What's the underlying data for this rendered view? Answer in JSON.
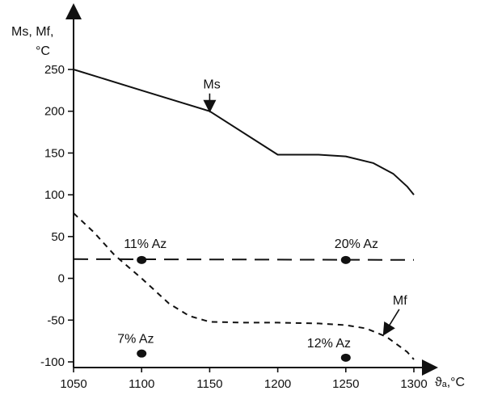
{
  "chart_data": {
    "type": "line",
    "xlabel": "ϑₐ,°C",
    "ylabel_lines": [
      "Ms,  Mf,",
      "°C"
    ],
    "xlim": [
      1050,
      1300
    ],
    "ylim": [
      -100,
      250
    ],
    "x_ticks": [
      1050,
      1100,
      1150,
      1200,
      1250,
      1300
    ],
    "y_ticks": [
      250,
      200,
      150,
      100,
      50,
      0,
      -50,
      -100
    ],
    "grid": false,
    "legend": "none",
    "series": [
      {
        "name": "Ms",
        "style": "solid",
        "points": [
          [
            1050,
            250
          ],
          [
            1100,
            225
          ],
          [
            1150,
            200
          ],
          [
            1200,
            148
          ],
          [
            1230,
            148
          ],
          [
            1250,
            146
          ],
          [
            1270,
            138
          ],
          [
            1285,
            125
          ],
          [
            1295,
            110
          ],
          [
            1300,
            100
          ]
        ]
      },
      {
        "name": "Mf",
        "style": "dashed",
        "points": [
          [
            1050,
            78
          ],
          [
            1065,
            55
          ],
          [
            1080,
            28
          ],
          [
            1100,
            0
          ],
          [
            1120,
            -30
          ],
          [
            1135,
            -45
          ],
          [
            1150,
            -52
          ],
          [
            1175,
            -53
          ],
          [
            1200,
            -53
          ],
          [
            1230,
            -54
          ],
          [
            1250,
            -56
          ],
          [
            1265,
            -60
          ],
          [
            1280,
            -70
          ],
          [
            1295,
            -88
          ],
          [
            1300,
            -97
          ]
        ]
      },
      {
        "name": "",
        "style": "long-dashed",
        "points": [
          [
            1050,
            23
          ],
          [
            1300,
            22
          ]
        ]
      }
    ],
    "markers": [
      {
        "x": 1100,
        "y": 22,
        "label": "11%  Az"
      },
      {
        "x": 1250,
        "y": 22,
        "label": "20%  Az"
      },
      {
        "x": 1100,
        "y": -90,
        "label": "7%  Az"
      },
      {
        "x": 1250,
        "y": -95,
        "label": "12%  Az"
      }
    ],
    "annotations": [
      {
        "text": "Ms",
        "x": 1150,
        "y": 200
      },
      {
        "text": "Mf",
        "x": 1275,
        "y": -68
      }
    ]
  }
}
